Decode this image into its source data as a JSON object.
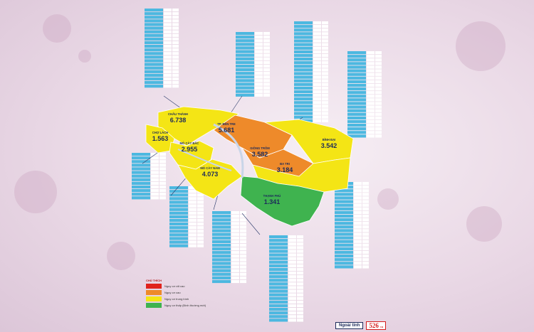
{
  "map": {
    "regions": [
      {
        "key": "chau-thanh",
        "name": "CHÂU THÀNH",
        "value": "6.738",
        "fill": "#f4e515"
      },
      {
        "key": "tx-ben-tre",
        "name": "TP. BẾN TRE",
        "value": "5.681",
        "fill": "#ee8a2a"
      },
      {
        "key": "cho-lach",
        "name": "CHỢ LÁCH",
        "value": "1.563",
        "fill": "#f4e515"
      },
      {
        "key": "mo-cay-bac",
        "name": "MỎ CÀY BẮC",
        "value": "2.955",
        "fill": "#f4e515"
      },
      {
        "key": "giong-trom",
        "name": "GIỒNG TRÔM",
        "value": "3.582",
        "fill": "#ee8a2a"
      },
      {
        "key": "binh-dai",
        "name": "BÌNH ĐẠI",
        "value": "3.542",
        "fill": "#f4e515"
      },
      {
        "key": "mo-cay-nam",
        "name": "MỎ CÀY NAM",
        "value": "4.073",
        "fill": "#f4e515"
      },
      {
        "key": "ba-tri",
        "name": "BA TRI",
        "value": "3.184",
        "fill": "#f4e515"
      },
      {
        "key": "thanh-phu",
        "name": "THẠNH PHÚ",
        "value": "1.341",
        "fill": "#3fb34f"
      }
    ]
  },
  "legend": {
    "title": "CHÚ THÍCH",
    "items": [
      {
        "color": "#e0231c",
        "text": "Nguy cơ rất cao"
      },
      {
        "color": "#ee8a2a",
        "text": "Nguy cơ cao"
      },
      {
        "color": "#f4e515",
        "text": "Nguy cơ trung bình"
      },
      {
        "color": "#3fb34f",
        "text": "Nguy cơ thấp (Bình thường mới)"
      }
    ]
  },
  "outside": {
    "label": "Ngoài tỉnh",
    "value": "526",
    "unit": "ca"
  },
  "colors": {
    "table_header": "#4cb8e0",
    "table_row": "#ffffff",
    "table_accent": "#2d86c7"
  }
}
